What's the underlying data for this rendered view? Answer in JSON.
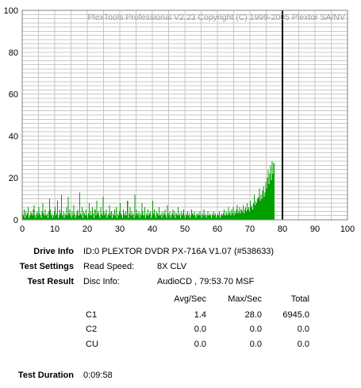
{
  "chart_data": {
    "type": "bar",
    "title": "PlexTools Professional V2.23 Copyright (C) 1999-2005 Plextor SA/NV",
    "xlim": [
      0,
      100
    ],
    "ylim": [
      0,
      100
    ],
    "xticks": [
      "0",
      "10",
      "20",
      "30",
      "40",
      "50",
      "60",
      "70",
      "80",
      "90",
      "100"
    ],
    "yticks": [
      "0",
      "20",
      "40",
      "60",
      "80",
      "100"
    ],
    "grid": true,
    "end_marker_x": 80,
    "series_color": "#00a000",
    "background_color": "#ffffff",
    "grid_color": "#c8c8c8",
    "series": [
      {
        "x_start": 0,
        "x_step": 0.25,
        "values": [
          3,
          2,
          5,
          1,
          4,
          2,
          3,
          6,
          1,
          2,
          4,
          3,
          2,
          5,
          7,
          2,
          1,
          3,
          4,
          2,
          6,
          3,
          2,
          1,
          4,
          8,
          3,
          2,
          5,
          2,
          3,
          1,
          4,
          10,
          5,
          2,
          3,
          1,
          2,
          4,
          6,
          2,
          3,
          9,
          1,
          2,
          5,
          3,
          12,
          2,
          4,
          1,
          3,
          2,
          6,
          2,
          11,
          3,
          5,
          2,
          1,
          4,
          2,
          7,
          3,
          1,
          2,
          4,
          5,
          2,
          13,
          3,
          2,
          6,
          1,
          4,
          3,
          2,
          5,
          2,
          1,
          3,
          8,
          2,
          4,
          2,
          6,
          3,
          1,
          5,
          2,
          9,
          3,
          4,
          2,
          1,
          6,
          3,
          2,
          11,
          4,
          2,
          3,
          5,
          1,
          2,
          3,
          7,
          2,
          4,
          1,
          3,
          2,
          5,
          2,
          6,
          1,
          3,
          2,
          4,
          8,
          3,
          2,
          1,
          5,
          3,
          2,
          4,
          2,
          9,
          1,
          3,
          6,
          2,
          4,
          2,
          3,
          1,
          12,
          2,
          5,
          3,
          2,
          4,
          1,
          3,
          2,
          8,
          4,
          2,
          6,
          1,
          3,
          2,
          5,
          2,
          3,
          4,
          1,
          2,
          9,
          3,
          5,
          2,
          1,
          4,
          3,
          2,
          6,
          2,
          3,
          1,
          4,
          2,
          3,
          5,
          2,
          1,
          7,
          3,
          2,
          4,
          1,
          2,
          3,
          5,
          2,
          4,
          1,
          3,
          2,
          6,
          2,
          3,
          1,
          4,
          2,
          3,
          5,
          2,
          1,
          3,
          2,
          4,
          2,
          3,
          1,
          2,
          5,
          3,
          2,
          4,
          2,
          1,
          3,
          2,
          3,
          2,
          4,
          2,
          1,
          3,
          2,
          5,
          2,
          3,
          1,
          2,
          4,
          2,
          3,
          2,
          1,
          3,
          2,
          4,
          2,
          3,
          1,
          2,
          3,
          2,
          4,
          1,
          2,
          3,
          2,
          3,
          5,
          2,
          4,
          3,
          2,
          6,
          3,
          4,
          2,
          5,
          3,
          6,
          2,
          4,
          3,
          5,
          7,
          3,
          4,
          6,
          3,
          5,
          4,
          7,
          3,
          5,
          6,
          4,
          8,
          5,
          6,
          4,
          9,
          6,
          7,
          5,
          8,
          12,
          7,
          9,
          8,
          10,
          11,
          15,
          9,
          12,
          10,
          14,
          16,
          11,
          13,
          18,
          15,
          20,
          24,
          17,
          22,
          26,
          19,
          28,
          22,
          27
        ]
      }
    ]
  },
  "info": {
    "drive_info_label": "Drive Info",
    "drive_info_value": "ID:0 PLEXTOR DVDR PX-716A V1.07 (#538633)",
    "test_settings_label": "Test Settings",
    "read_speed_label": "Read Speed:",
    "read_speed_value": "8X CLV",
    "test_result_label": "Test Result",
    "disc_info_label": "Disc Info:",
    "disc_info_value": "AudioCD , 79:53.70 MSF",
    "test_duration_label": "Test Duration",
    "test_duration_value": "0:09:58"
  },
  "results": {
    "headers": [
      "Avg/Sec",
      "Max/Sec",
      "Total"
    ],
    "rows": [
      {
        "name": "C1",
        "avg": "1.4",
        "max": "28.0",
        "total": "6945.0"
      },
      {
        "name": "C2",
        "avg": "0.0",
        "max": "0.0",
        "total": "0.0"
      },
      {
        "name": "CU",
        "avg": "0.0",
        "max": "0.0",
        "total": "0.0"
      }
    ]
  }
}
